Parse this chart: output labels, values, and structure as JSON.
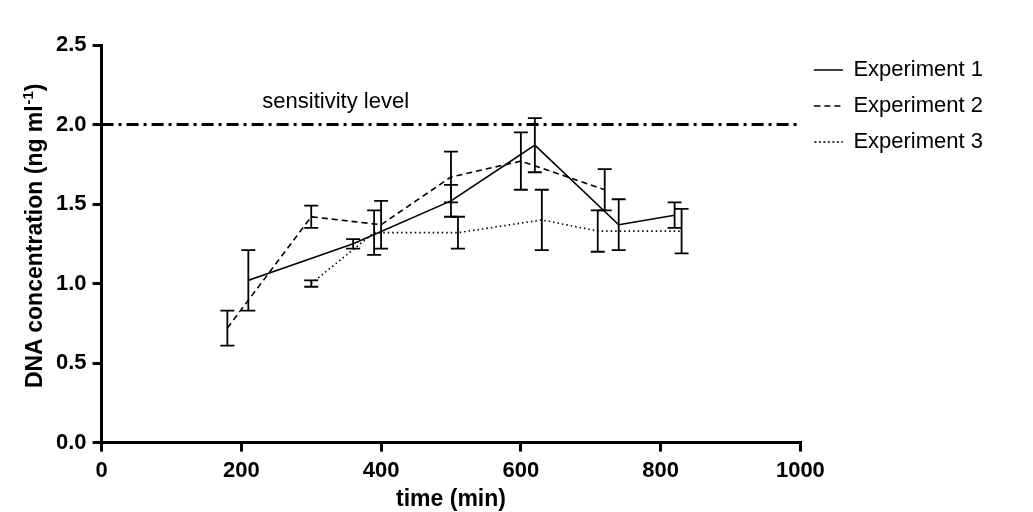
{
  "chart_data": {
    "type": "line",
    "xlabel": "time (min)",
    "ylabel": "DNA concentration (ng ml$^{-1}$)",
    "xlim": [
      0,
      1000
    ],
    "xticks": [
      0,
      200,
      400,
      600,
      800,
      1000
    ],
    "ylim": [
      0,
      2.5
    ],
    "yticks": [
      {
        "value": 0,
        "label": "0.0"
      },
      0.5,
      {
        "value": 1,
        "label": "1.0"
      },
      1.5,
      {
        "value": 2,
        "label": "2.0"
      },
      2.5
    ],
    "grid": false,
    "legend": "right",
    "marker": "none",
    "series": [
      {
        "name": "Experiment 1",
        "color": "#000000",
        "line_style": "solid",
        "x": [
          210,
          360,
          500,
          620,
          740,
          820
        ],
        "values": [
          1.02,
          1.25,
          1.52,
          1.87,
          1.37,
          1.43
        ],
        "errors": [
          0.19,
          0.03,
          0.1,
          0.17,
          0.16,
          0.08
        ]
      },
      {
        "name": "Experiment 2",
        "color": "#000000",
        "line_style": "dashed",
        "x": [
          180,
          300,
          400,
          500,
          600,
          720
        ],
        "values": [
          0.72,
          1.42,
          1.37,
          1.67,
          1.77,
          1.59
        ],
        "errors": [
          0.11,
          0.07,
          0.15,
          0.16,
          0.18,
          0.13
        ]
      },
      {
        "name": "Experiment 3",
        "color": "#000000",
        "line_style": "dotted",
        "x": [
          300,
          390,
          510,
          630,
          710,
          830
        ],
        "values": [
          1.0,
          1.32,
          1.32,
          1.4,
          1.33,
          1.33
        ],
        "errors": [
          0.02,
          0.14,
          0.1,
          0.19,
          0.13,
          0.14
        ]
      }
    ],
    "ref_lines": [
      {
        "axis": "y",
        "value": 2.0,
        "label": "sensitivity level",
        "color": "#000000",
        "line_style": "dashdot"
      }
    ]
  }
}
